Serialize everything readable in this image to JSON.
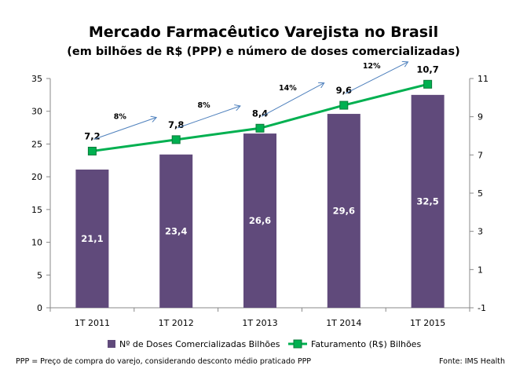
{
  "chart_data": {
    "type": "bar+line",
    "title": "Mercado Farmacêutico Varejista no Brasil",
    "subtitle": "(em bilhões de R$ (PPP) e número de doses comercializadas)",
    "categories": [
      "1T 2011",
      "1T 2012",
      "1T 2013",
      "1T 2014",
      "1T 2015"
    ],
    "series": [
      {
        "name": "Nº de Doses Comercializadas Bilhões",
        "type": "bar",
        "axis": "left",
        "values": [
          21.1,
          23.4,
          26.6,
          29.6,
          32.5
        ],
        "labels": [
          "21,1",
          "23,4",
          "26,6",
          "29,6",
          "32,5"
        ],
        "color": "#604a7b"
      },
      {
        "name": "Faturamento (R$) Bilhões",
        "type": "line",
        "axis": "right",
        "values": [
          7.2,
          7.8,
          8.4,
          9.6,
          10.7
        ],
        "labels": [
          "7,2",
          "7,8",
          "8,4",
          "9,6",
          "10,7"
        ],
        "color": "#00b050"
      }
    ],
    "growth_annotations": [
      "8%",
      "8%",
      "14%",
      "12%"
    ],
    "y_left": {
      "min": 0,
      "max": 35,
      "ticks": [
        "0",
        "5",
        "10",
        "15",
        "20",
        "25",
        "30",
        "35"
      ]
    },
    "y_right": {
      "min": -1,
      "max": 11,
      "ticks": [
        "-1",
        "1",
        "3",
        "5",
        "7",
        "9",
        "11"
      ]
    },
    "legend_position": "bottom",
    "grid": false
  },
  "footer": {
    "note": "PPP = Preço de compra do varejo, considerando desconto médio praticado PPP",
    "source": "Fonte: IMS Health"
  }
}
